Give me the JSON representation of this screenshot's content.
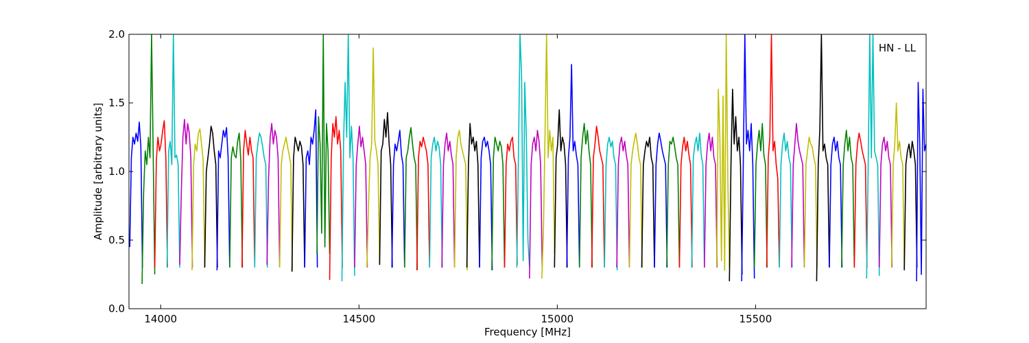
{
  "chart_data": {
    "type": "line",
    "title": "",
    "annotation": "HN - LL",
    "xlabel": "Frequency [MHz]",
    "ylabel": "Amplitude [arbitrary units]",
    "xlim": [
      13920,
      15930
    ],
    "ylim": [
      0.0,
      2.0
    ],
    "x_ticks": [
      14000,
      14500,
      15000,
      15500
    ],
    "y_ticks": [
      0.0,
      0.5,
      1.0,
      1.5,
      2.0
    ],
    "x_tick_labels": [
      "14000",
      "14500",
      "15000",
      "15500"
    ],
    "y_tick_labels": [
      "0.0",
      "0.5",
      "1.0",
      "1.5",
      "2.0"
    ],
    "grid": false,
    "legend": "none",
    "channel_width_mhz": 32,
    "color_cycle": [
      "#0000ff",
      "#008000",
      "#ff0000",
      "#00bfbf",
      "#bf00bf",
      "#bfbf00",
      "#000000"
    ],
    "series": [
      {
        "color": "#0000ff",
        "start": 13922,
        "values": [
          0.45,
          1.1,
          1.25,
          1.2,
          1.28,
          1.22,
          1.36,
          1.18,
          0.3
        ]
      },
      {
        "color": "#008000",
        "start": 13953,
        "values": [
          0.18,
          0.85,
          1.15,
          1.05,
          1.25,
          1.1,
          2.0,
          1.15,
          0.25
        ]
      },
      {
        "color": "#ff0000",
        "start": 13985,
        "values": [
          0.3,
          1.08,
          1.25,
          1.15,
          1.2,
          1.3,
          1.37,
          1.1,
          0.3
        ]
      },
      {
        "color": "#00bfbf",
        "start": 14016,
        "values": [
          0.3,
          1.15,
          1.22,
          1.05,
          2.0,
          1.1,
          1.12,
          1.05,
          0.3
        ]
      },
      {
        "color": "#bf00bf",
        "start": 14048,
        "values": [
          0.32,
          0.85,
          1.25,
          1.38,
          1.2,
          1.35,
          1.28,
          1.1,
          0.3
        ]
      },
      {
        "color": "#bfbf00",
        "start": 14079,
        "values": [
          0.28,
          1.05,
          1.2,
          1.15,
          1.28,
          1.31,
          1.2,
          1.08,
          0.3
        ]
      },
      {
        "color": "#000000",
        "start": 14111,
        "values": [
          0.3,
          1.0,
          1.1,
          1.2,
          1.33,
          1.28,
          1.15,
          1.05,
          0.3
        ]
      },
      {
        "color": "#0000ff",
        "start": 14142,
        "values": [
          0.28,
          1.15,
          1.1,
          1.2,
          1.3,
          1.25,
          1.32,
          1.1,
          0.3
        ]
      },
      {
        "color": "#008000",
        "start": 14174,
        "values": [
          0.3,
          1.1,
          1.18,
          1.12,
          1.1,
          1.22,
          1.28,
          1.08,
          0.3
        ]
      },
      {
        "color": "#ff0000",
        "start": 14205,
        "values": [
          0.3,
          1.15,
          1.3,
          1.2,
          1.12,
          1.25,
          1.15,
          1.1,
          0.32
        ]
      },
      {
        "color": "#00bfbf",
        "start": 14237,
        "values": [
          0.3,
          1.1,
          1.2,
          1.28,
          1.25,
          1.18,
          1.1,
          1.05,
          0.3
        ]
      },
      {
        "color": "#bf00bf",
        "start": 14268,
        "values": [
          0.32,
          0.95,
          1.25,
          1.35,
          1.2,
          1.3,
          1.25,
          1.1,
          0.3
        ]
      },
      {
        "color": "#bfbf00",
        "start": 14300,
        "values": [
          0.3,
          1.05,
          1.15,
          1.2,
          1.25,
          1.18,
          1.12,
          1.05,
          0.28
        ]
      },
      {
        "color": "#000000",
        "start": 14331,
        "values": [
          0.27,
          1.1,
          1.25,
          1.2,
          1.15,
          1.22,
          1.18,
          1.05,
          0.3
        ]
      },
      {
        "color": "#0000ff",
        "start": 14363,
        "values": [
          0.3,
          1.1,
          1.15,
          1.05,
          1.25,
          1.2,
          1.3,
          1.45,
          0.3
        ]
      },
      {
        "color": "#008000",
        "start": 14394,
        "values": [
          0.4,
          1.4,
          1.2,
          0.55,
          2.0,
          0.45,
          1.35,
          1.15,
          0.4
        ]
      },
      {
        "color": "#ff0000",
        "start": 14426,
        "values": [
          0.21,
          1.1,
          1.35,
          1.25,
          1.4,
          1.2,
          1.3,
          1.15,
          0.3
        ]
      },
      {
        "color": "#00bfbf",
        "start": 14457,
        "values": [
          0.2,
          1.2,
          1.65,
          1.25,
          2.0,
          1.1,
          1.33,
          1.1,
          0.24
        ]
      },
      {
        "color": "#bf00bf",
        "start": 14489,
        "values": [
          0.3,
          1.05,
          1.2,
          1.33,
          1.18,
          1.25,
          1.15,
          1.05,
          0.3
        ]
      },
      {
        "color": "#bfbf00",
        "start": 14520,
        "values": [
          0.3,
          0.75,
          1.1,
          1.2,
          1.9,
          1.22,
          1.15,
          1.05,
          0.32
        ]
      },
      {
        "color": "#000000",
        "start": 14552,
        "values": [
          0.32,
          1.15,
          1.2,
          1.38,
          1.25,
          1.43,
          1.2,
          1.05,
          0.3
        ]
      },
      {
        "color": "#0000ff",
        "start": 14583,
        "values": [
          0.3,
          1.05,
          1.2,
          1.15,
          1.22,
          1.3,
          1.12,
          1.05,
          0.3
        ]
      },
      {
        "color": "#008000",
        "start": 14615,
        "values": [
          0.3,
          1.1,
          1.15,
          1.25,
          1.32,
          1.2,
          1.1,
          1.05,
          0.28
        ]
      },
      {
        "color": "#ff0000",
        "start": 14646,
        "values": [
          0.28,
          1.1,
          1.22,
          1.18,
          1.25,
          1.2,
          1.15,
          1.05,
          0.3
        ]
      },
      {
        "color": "#00bfbf",
        "start": 14678,
        "values": [
          0.3,
          1.1,
          1.2,
          1.25,
          1.15,
          1.22,
          1.18,
          1.05,
          0.3
        ]
      },
      {
        "color": "#bf00bf",
        "start": 14709,
        "values": [
          0.3,
          1.05,
          1.2,
          1.28,
          1.15,
          1.22,
          1.12,
          1.05,
          0.3
        ]
      },
      {
        "color": "#bfbf00",
        "start": 14741,
        "values": [
          0.3,
          1.1,
          1.25,
          1.3,
          1.2,
          1.15,
          1.1,
          1.05,
          0.28
        ]
      },
      {
        "color": "#000000",
        "start": 14772,
        "values": [
          0.3,
          1.05,
          1.35,
          1.2,
          1.25,
          1.15,
          1.22,
          1.05,
          0.3
        ]
      },
      {
        "color": "#0000ff",
        "start": 14804,
        "values": [
          0.3,
          1.1,
          1.22,
          1.25,
          1.18,
          1.22,
          1.15,
          1.05,
          0.28
        ]
      },
      {
        "color": "#008000",
        "start": 14835,
        "values": [
          0.28,
          1.1,
          1.25,
          1.2,
          1.15,
          1.22,
          1.18,
          1.05,
          0.3
        ]
      },
      {
        "color": "#ff0000",
        "start": 14867,
        "values": [
          0.3,
          1.05,
          1.2,
          1.15,
          1.22,
          1.25,
          1.1,
          1.05,
          0.32
        ]
      },
      {
        "color": "#00bfbf",
        "start": 14898,
        "values": [
          0.3,
          1.1,
          2.0,
          1.7,
          0.35,
          1.65,
          1.25,
          0.5,
          0.3
        ]
      },
      {
        "color": "#bf00bf",
        "start": 14930,
        "values": [
          0.22,
          1.05,
          1.2,
          1.25,
          1.15,
          1.3,
          1.22,
          1.05,
          0.3
        ]
      },
      {
        "color": "#bfbf00",
        "start": 14961,
        "values": [
          0.22,
          0.55,
          1.25,
          2.0,
          1.1,
          1.3,
          1.15,
          1.25,
          0.4
        ]
      },
      {
        "color": "#000000",
        "start": 14993,
        "values": [
          0.3,
          1.1,
          1.2,
          1.45,
          1.15,
          1.25,
          1.2,
          1.05,
          0.3
        ]
      },
      {
        "color": "#0000ff",
        "start": 15024,
        "values": [
          0.3,
          1.1,
          1.25,
          1.78,
          1.15,
          1.22,
          1.12,
          1.05,
          0.3
        ]
      },
      {
        "color": "#008000",
        "start": 15056,
        "values": [
          0.3,
          1.1,
          1.25,
          1.35,
          1.2,
          1.3,
          1.15,
          1.05,
          0.3
        ]
      },
      {
        "color": "#ff0000",
        "start": 15087,
        "values": [
          0.3,
          1.1,
          1.2,
          1.33,
          1.25,
          1.15,
          1.1,
          1.05,
          0.3
        ]
      },
      {
        "color": "#00bfbf",
        "start": 15119,
        "values": [
          0.3,
          1.05,
          1.2,
          1.25,
          1.18,
          1.22,
          1.1,
          1.05,
          0.28
        ]
      },
      {
        "color": "#bf00bf",
        "start": 15150,
        "values": [
          0.3,
          1.05,
          1.2,
          1.25,
          1.15,
          1.22,
          1.12,
          1.05,
          0.3
        ]
      },
      {
        "color": "#bfbf00",
        "start": 15182,
        "values": [
          0.3,
          1.05,
          1.15,
          1.22,
          1.28,
          1.2,
          1.1,
          1.05,
          0.3
        ]
      },
      {
        "color": "#000000",
        "start": 15213,
        "values": [
          0.3,
          1.05,
          1.15,
          1.22,
          1.18,
          1.25,
          1.1,
          1.05,
          0.3
        ]
      },
      {
        "color": "#0000ff",
        "start": 15245,
        "values": [
          0.3,
          1.05,
          1.2,
          1.28,
          1.22,
          1.15,
          1.1,
          1.05,
          0.3
        ]
      },
      {
        "color": "#008000",
        "start": 15276,
        "values": [
          0.3,
          1.05,
          1.22,
          1.2,
          1.25,
          1.18,
          1.1,
          1.05,
          0.3
        ]
      },
      {
        "color": "#ff0000",
        "start": 15308,
        "values": [
          0.3,
          1.05,
          1.18,
          1.25,
          1.15,
          1.22,
          1.12,
          1.05,
          0.3
        ]
      },
      {
        "color": "#00bfbf",
        "start": 15339,
        "values": [
          0.3,
          1.1,
          1.2,
          1.25,
          1.15,
          1.28,
          1.12,
          1.05,
          0.3
        ]
      },
      {
        "color": "#bf00bf",
        "start": 15371,
        "values": [
          0.3,
          1.05,
          1.2,
          1.28,
          1.15,
          1.25,
          1.1,
          1.05,
          0.3
        ]
      },
      {
        "color": "#bfbf00",
        "start": 15402,
        "values": [
          0.3,
          1.6,
          1.25,
          0.35,
          1.55,
          0.28,
          2.0,
          0.95,
          0.3
        ]
      },
      {
        "color": "#000000",
        "start": 15434,
        "values": [
          0.2,
          1.05,
          1.6,
          1.2,
          1.4,
          1.15,
          1.25,
          1.05,
          0.25
        ]
      },
      {
        "color": "#0000ff",
        "start": 15465,
        "values": [
          0.2,
          1.05,
          2.0,
          1.2,
          1.3,
          1.15,
          1.35,
          1.05,
          0.22
        ]
      },
      {
        "color": "#008000",
        "start": 15497,
        "values": [
          0.3,
          1.05,
          1.2,
          1.3,
          1.15,
          1.35,
          1.12,
          1.05,
          0.3
        ]
      },
      {
        "color": "#ff0000",
        "start": 15528,
        "values": [
          0.3,
          1.1,
          1.25,
          2.0,
          1.15,
          1.22,
          1.05,
          0.95,
          0.3
        ]
      },
      {
        "color": "#00bfbf",
        "start": 15560,
        "values": [
          0.3,
          1.05,
          1.2,
          1.28,
          1.15,
          1.22,
          1.1,
          1.05,
          0.3
        ]
      },
      {
        "color": "#bf00bf",
        "start": 15591,
        "values": [
          0.3,
          1.05,
          1.2,
          1.35,
          1.22,
          1.15,
          1.1,
          1.05,
          0.3
        ]
      },
      {
        "color": "#bfbf00",
        "start": 15623,
        "values": [
          0.3,
          1.05,
          1.15,
          1.25,
          1.2,
          1.18,
          1.1,
          1.05,
          0.3
        ]
      },
      {
        "color": "#000000",
        "start": 15654,
        "values": [
          0.2,
          1.05,
          1.3,
          2.0,
          1.15,
          1.2,
          1.1,
          1.05,
          0.3
        ]
      },
      {
        "color": "#0000ff",
        "start": 15686,
        "values": [
          0.3,
          1.05,
          1.2,
          1.25,
          1.15,
          1.22,
          1.1,
          1.05,
          0.3
        ]
      },
      {
        "color": "#008000",
        "start": 15717,
        "values": [
          0.3,
          1.05,
          1.2,
          1.3,
          1.15,
          1.25,
          1.1,
          1.05,
          0.3
        ]
      },
      {
        "color": "#ff0000",
        "start": 15749,
        "values": [
          0.3,
          1.05,
          1.2,
          1.28,
          1.22,
          1.15,
          1.1,
          1.05,
          0.3
        ]
      },
      {
        "color": "#00bfbf",
        "start": 15780,
        "values": [
          0.22,
          1.05,
          2.0,
          1.1,
          2.0,
          1.15,
          1.1,
          1.05,
          0.24
        ]
      },
      {
        "color": "#bf00bf",
        "start": 15812,
        "values": [
          0.3,
          1.05,
          1.2,
          1.25,
          1.15,
          1.22,
          1.1,
          1.05,
          0.3
        ]
      },
      {
        "color": "#bfbf00",
        "start": 15843,
        "values": [
          0.3,
          1.05,
          1.2,
          1.5,
          1.15,
          1.22,
          1.1,
          1.05,
          0.3
        ]
      },
      {
        "color": "#000000",
        "start": 15875,
        "values": [
          0.28,
          1.05,
          1.15,
          1.2,
          1.1,
          1.22,
          1.15,
          1.05,
          0.3
        ]
      },
      {
        "color": "#0000ff",
        "start": 15906,
        "values": [
          0.2,
          1.65,
          1.2,
          0.25,
          1.6,
          1.15,
          1.2,
          1.1,
          1.2
        ]
      }
    ]
  }
}
